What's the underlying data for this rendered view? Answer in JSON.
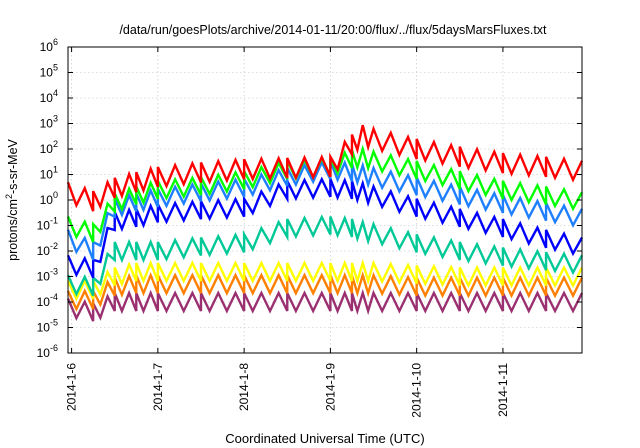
{
  "chart_data": {
    "type": "line",
    "title": "/data/run/goesPlots/archive/2014-01-11/20:00/flux/../flux/5daysMarsFluxes.txt",
    "xlabel": "Coordinated Universal Time (UTC)",
    "ylabel": {
      "text": "protons/cm",
      "superscript": "2",
      "suffix": "-s-sr-MeV"
    },
    "y_scale": "log",
    "ylim": [
      1e-06,
      1000000.0
    ],
    "y_ticks": [
      {
        "value": 1e-06,
        "base": "10",
        "exp": "-6"
      },
      {
        "value": 1e-05,
        "base": "10",
        "exp": "-5"
      },
      {
        "value": 0.0001,
        "base": "10",
        "exp": "-4"
      },
      {
        "value": 0.001,
        "base": "10",
        "exp": "-3"
      },
      {
        "value": 0.01,
        "base": "10",
        "exp": "-2"
      },
      {
        "value": 0.1,
        "base": "10",
        "exp": "-1"
      },
      {
        "value": 1,
        "base": "10",
        "exp": "0"
      },
      {
        "value": 10,
        "base": "10",
        "exp": "1"
      },
      {
        "value": 100,
        "base": "10",
        "exp": "2"
      },
      {
        "value": 1000,
        "base": "10",
        "exp": "3"
      },
      {
        "value": 10000,
        "base": "10",
        "exp": "4"
      },
      {
        "value": 100000,
        "base": "10",
        "exp": "5"
      },
      {
        "value": 1000000,
        "base": "10",
        "exp": "6"
      }
    ],
    "xlim": [
      "2014-01-05T23:00",
      "2014-01-11T22:00"
    ],
    "x_ticks": [
      {
        "date": "2014-01-06T00:00",
        "label": "2014-1-6"
      },
      {
        "date": "2014-01-07T00:00",
        "label": "2014-1-7"
      },
      {
        "date": "2014-01-08T00:00",
        "label": "2014-1-8"
      },
      {
        "date": "2014-01-09T00:00",
        "label": "2014-1-9"
      },
      {
        "date": "2014-01-10T00:00",
        "label": "2014-1-10"
      },
      {
        "date": "2014-01-11T00:00",
        "label": "2014-1-11"
      }
    ],
    "grid": true,
    "series": [
      {
        "color": "#ff0000",
        "x": [
          "2014-01-05T23:00",
          "2014-01-06T06:00",
          "2014-01-06T12:00",
          "2014-01-06T18:00",
          "2014-01-07T00:00",
          "2014-01-07T12:00",
          "2014-01-08T00:00",
          "2014-01-08T12:00",
          "2014-01-09T00:00",
          "2014-01-09T06:00",
          "2014-01-09T09:00",
          "2014-01-09T12:00",
          "2014-01-10T00:00",
          "2014-01-10T12:00",
          "2014-01-11T00:00",
          "2014-01-11T12:00",
          "2014-01-11T22:00"
        ],
        "y": [
          2.0,
          0.9,
          3.0,
          5.0,
          8.0,
          12,
          16,
          18,
          20,
          150,
          350,
          250,
          100,
          50,
          28,
          20,
          14
        ]
      },
      {
        "color": "#00ff00",
        "x": [
          "2014-01-05T23:00",
          "2014-01-06T06:00",
          "2014-01-06T12:00",
          "2014-01-06T18:00",
          "2014-01-07T00:00",
          "2014-01-07T12:00",
          "2014-01-08T00:00",
          "2014-01-08T12:00",
          "2014-01-09T00:00",
          "2014-01-09T06:00",
          "2014-01-09T09:00",
          "2014-01-09T12:00",
          "2014-01-10T00:00",
          "2014-01-10T12:00",
          "2014-01-11T00:00",
          "2014-01-11T12:00",
          "2014-01-11T22:00"
        ],
        "y": [
          0.1,
          0.05,
          0.8,
          1.5,
          2.5,
          3.5,
          6,
          15,
          20,
          40,
          45,
          35,
          15,
          6,
          2.5,
          1.5,
          0.9
        ]
      },
      {
        "color": "#1e7fff",
        "x": [
          "2014-01-05T23:00",
          "2014-01-06T06:00",
          "2014-01-06T12:00",
          "2014-01-06T18:00",
          "2014-01-07T00:00",
          "2014-01-07T12:00",
          "2014-01-08T00:00",
          "2014-01-08T12:00",
          "2014-01-09T00:00",
          "2014-01-09T06:00",
          "2014-01-09T09:00",
          "2014-01-09T12:00",
          "2014-01-10T00:00",
          "2014-01-10T12:00",
          "2014-01-11T00:00",
          "2014-01-11T12:00",
          "2014-01-11T22:00"
        ],
        "y": [
          0.03,
          0.01,
          0.5,
          0.8,
          1.2,
          2.0,
          3,
          8,
          15,
          12,
          10,
          8,
          3.5,
          1.5,
          0.7,
          0.35,
          0.2
        ]
      },
      {
        "color": "#0000ff",
        "x": [
          "2014-01-05T23:00",
          "2014-01-06T06:00",
          "2014-01-06T12:00",
          "2014-01-06T18:00",
          "2014-01-07T00:00",
          "2014-01-07T12:00",
          "2014-01-08T00:00",
          "2014-01-08T12:00",
          "2014-01-09T00:00",
          "2014-01-09T06:00",
          "2014-01-09T09:00",
          "2014-01-09T12:00",
          "2014-01-10T00:00",
          "2014-01-10T12:00",
          "2014-01-11T00:00",
          "2014-01-11T12:00",
          "2014-01-11T22:00"
        ],
        "y": [
          0.003,
          0.002,
          0.15,
          0.2,
          0.3,
          0.4,
          0.5,
          2.5,
          3.0,
          2.5,
          2.0,
          1.5,
          0.5,
          0.2,
          0.08,
          0.03,
          0.015
        ]
      },
      {
        "color": "#00c896",
        "x": [
          "2014-01-05T23:00",
          "2014-01-06T06:00",
          "2014-01-06T12:00",
          "2014-01-06T18:00",
          "2014-01-07T00:00",
          "2014-01-07T12:00",
          "2014-01-08T00:00",
          "2014-01-08T12:00",
          "2014-01-09T00:00",
          "2014-01-09T06:00",
          "2014-01-09T09:00",
          "2014-01-09T12:00",
          "2014-01-10T00:00",
          "2014-01-10T12:00",
          "2014-01-11T00:00",
          "2014-01-11T12:00",
          "2014-01-11T22:00"
        ],
        "y": [
          0.0005,
          0.0004,
          0.01,
          0.01,
          0.01,
          0.015,
          0.02,
          0.08,
          0.1,
          0.08,
          0.06,
          0.05,
          0.02,
          0.01,
          0.006,
          0.004,
          0.003
        ]
      },
      {
        "color": "#ffff00",
        "x": [
          "2014-01-05T23:00",
          "2014-01-06T06:00",
          "2014-01-06T12:00",
          "2014-01-06T18:00",
          "2014-01-07T00:00",
          "2014-01-07T12:00",
          "2014-01-08T00:00",
          "2014-01-08T12:00",
          "2014-01-09T00:00",
          "2014-01-09T06:00",
          "2014-01-09T09:00",
          "2014-01-09T12:00",
          "2014-01-10T00:00",
          "2014-01-10T12:00",
          "2014-01-11T00:00",
          "2014-01-11T12:00",
          "2014-01-11T22:00"
        ],
        "y": [
          0.0003,
          0.0003,
          0.001,
          0.0015,
          0.0015,
          0.0015,
          0.0015,
          0.0015,
          0.0015,
          0.0015,
          0.0015,
          0.0015,
          0.0012,
          0.001,
          0.001,
          0.001,
          0.001
        ]
      },
      {
        "color": "#ff8000",
        "x": [
          "2014-01-05T23:00",
          "2014-01-06T06:00",
          "2014-01-06T12:00",
          "2014-01-06T18:00",
          "2014-01-07T00:00",
          "2014-01-07T12:00",
          "2014-01-08T00:00",
          "2014-01-08T12:00",
          "2014-01-09T00:00",
          "2014-01-09T06:00",
          "2014-01-09T09:00",
          "2014-01-09T12:00",
          "2014-01-10T00:00",
          "2014-01-10T12:00",
          "2014-01-11T00:00",
          "2014-01-11T12:00",
          "2014-01-11T22:00"
        ],
        "y": [
          0.00012,
          0.00012,
          0.0004,
          0.0005,
          0.0005,
          0.0005,
          0.0005,
          0.0005,
          0.0005,
          0.0005,
          0.0005,
          0.0005,
          0.0004,
          0.0004,
          0.0004,
          0.0004,
          0.0004
        ]
      },
      {
        "color": "#9b3070",
        "x": [
          "2014-01-05T23:00",
          "2014-01-06T06:00",
          "2014-01-06T12:00",
          "2014-01-06T18:00",
          "2014-01-07T00:00",
          "2014-01-07T12:00",
          "2014-01-08T00:00",
          "2014-01-08T12:00",
          "2014-01-09T00:00",
          "2014-01-09T06:00",
          "2014-01-09T09:00",
          "2014-01-09T12:00",
          "2014-01-10T00:00",
          "2014-01-10T12:00",
          "2014-01-11T00:00",
          "2014-01-11T12:00",
          "2014-01-11T22:00"
        ],
        "y": [
          6e-05,
          4e-05,
          0.0001,
          0.0001,
          0.0001,
          0.0001,
          0.0001,
          0.0001,
          0.0001,
          0.0001,
          0.0001,
          0.0001,
          0.0001,
          0.0001,
          0.0001,
          0.0001,
          0.0001
        ]
      }
    ]
  }
}
